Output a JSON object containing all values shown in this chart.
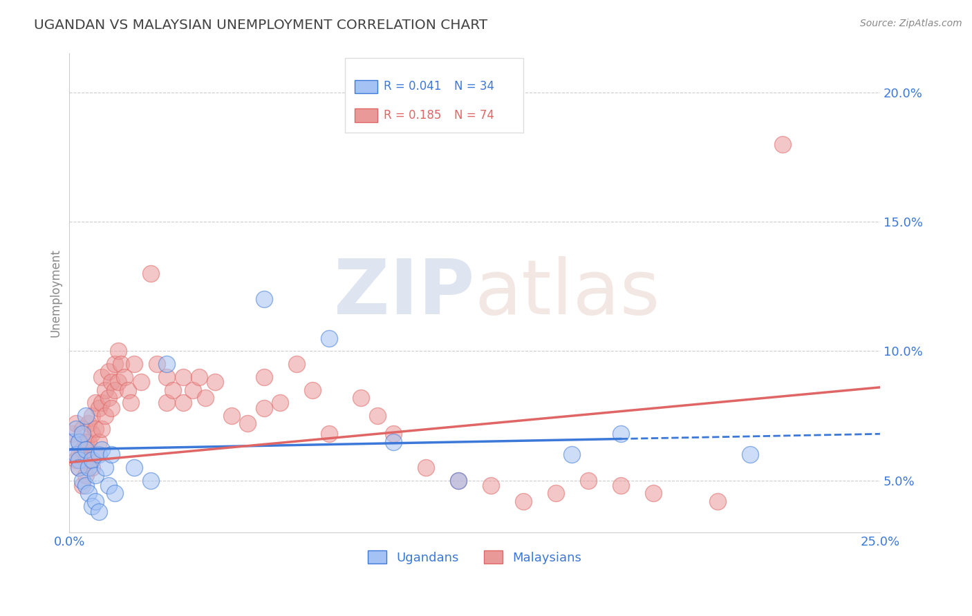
{
  "title": "UGANDAN VS MALAYSIAN UNEMPLOYMENT CORRELATION CHART",
  "source": "Source: ZipAtlas.com",
  "ylabel": "Unemployment",
  "xlim": [
    0.0,
    0.25
  ],
  "ylim": [
    0.03,
    0.215
  ],
  "yticks": [
    0.05,
    0.1,
    0.15,
    0.2
  ],
  "ytick_labels": [
    "5.0%",
    "10.0%",
    "15.0%",
    "20.0%"
  ],
  "xticks": [
    0.0,
    0.25
  ],
  "xtick_labels": [
    "0.0%",
    "25.0%"
  ],
  "r_ugandan": 0.041,
  "n_ugandan": 34,
  "r_malaysian": 0.185,
  "n_malaysian": 74,
  "color_ugandan": "#a4c2f4",
  "color_malaysian": "#ea9999",
  "color_ugandan_line": "#3c78d8",
  "color_malaysian_line": "#e06666",
  "title_color": "#434343",
  "axis_label_color": "#3c78d8",
  "ugandan_x": [
    0.001,
    0.002,
    0.002,
    0.003,
    0.003,
    0.003,
    0.004,
    0.004,
    0.005,
    0.005,
    0.005,
    0.006,
    0.006,
    0.007,
    0.007,
    0.008,
    0.008,
    0.009,
    0.009,
    0.01,
    0.011,
    0.012,
    0.013,
    0.014,
    0.02,
    0.025,
    0.03,
    0.06,
    0.08,
    0.1,
    0.12,
    0.155,
    0.17,
    0.21
  ],
  "ugandan_y": [
    0.065,
    0.06,
    0.07,
    0.065,
    0.058,
    0.055,
    0.068,
    0.05,
    0.062,
    0.048,
    0.075,
    0.055,
    0.045,
    0.058,
    0.04,
    0.052,
    0.042,
    0.06,
    0.038,
    0.062,
    0.055,
    0.048,
    0.06,
    0.045,
    0.055,
    0.05,
    0.095,
    0.12,
    0.105,
    0.065,
    0.05,
    0.06,
    0.068,
    0.06
  ],
  "malaysian_x": [
    0.001,
    0.002,
    0.002,
    0.003,
    0.003,
    0.003,
    0.004,
    0.004,
    0.004,
    0.005,
    0.005,
    0.005,
    0.006,
    0.006,
    0.006,
    0.007,
    0.007,
    0.007,
    0.008,
    0.008,
    0.008,
    0.009,
    0.009,
    0.01,
    0.01,
    0.01,
    0.011,
    0.011,
    0.012,
    0.012,
    0.013,
    0.013,
    0.014,
    0.014,
    0.015,
    0.015,
    0.016,
    0.017,
    0.018,
    0.019,
    0.02,
    0.022,
    0.025,
    0.027,
    0.03,
    0.03,
    0.032,
    0.035,
    0.035,
    0.038,
    0.04,
    0.042,
    0.045,
    0.05,
    0.055,
    0.06,
    0.06,
    0.065,
    0.07,
    0.075,
    0.08,
    0.09,
    0.095,
    0.1,
    0.11,
    0.12,
    0.13,
    0.14,
    0.15,
    0.16,
    0.17,
    0.18,
    0.2,
    0.22
  ],
  "malaysian_y": [
    0.068,
    0.072,
    0.058,
    0.065,
    0.06,
    0.055,
    0.07,
    0.062,
    0.048,
    0.065,
    0.058,
    0.052,
    0.072,
    0.065,
    0.058,
    0.075,
    0.068,
    0.055,
    0.08,
    0.07,
    0.06,
    0.078,
    0.065,
    0.09,
    0.08,
    0.07,
    0.085,
    0.075,
    0.092,
    0.082,
    0.088,
    0.078,
    0.095,
    0.085,
    0.1,
    0.088,
    0.095,
    0.09,
    0.085,
    0.08,
    0.095,
    0.088,
    0.13,
    0.095,
    0.09,
    0.08,
    0.085,
    0.09,
    0.08,
    0.085,
    0.09,
    0.082,
    0.088,
    0.075,
    0.072,
    0.09,
    0.078,
    0.08,
    0.095,
    0.085,
    0.068,
    0.082,
    0.075,
    0.068,
    0.055,
    0.05,
    0.048,
    0.042,
    0.045,
    0.05,
    0.048,
    0.045,
    0.042,
    0.18
  ]
}
